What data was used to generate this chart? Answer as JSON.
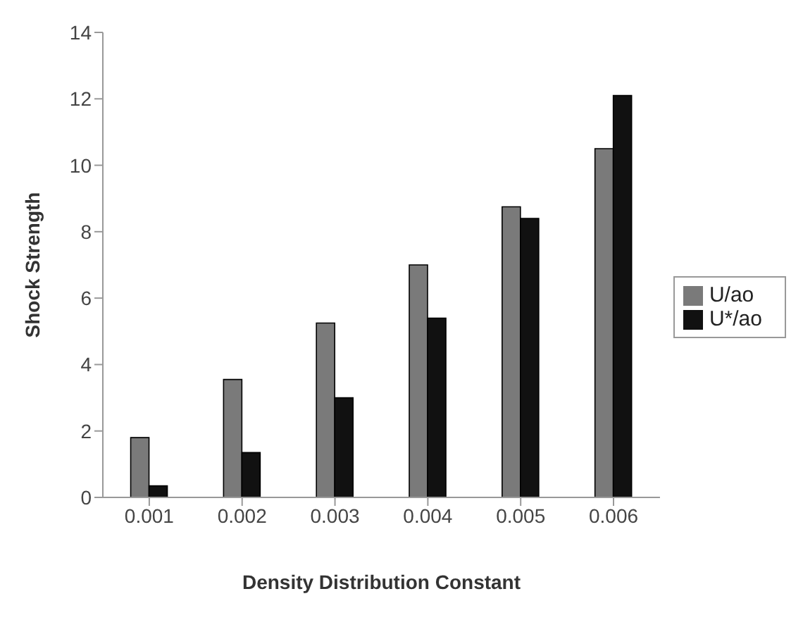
{
  "chart_data": {
    "type": "bar",
    "xlabel": "Density Distribution Constant",
    "ylabel": "Shock Strength",
    "categories": [
      "0.001",
      "0.002",
      "0.003",
      "0.004",
      "0.005",
      "0.006"
    ],
    "series": [
      {
        "name": "U/ao",
        "color": "#7a7a7a",
        "values": [
          1.8,
          3.55,
          5.25,
          7.0,
          8.75,
          10.5
        ]
      },
      {
        "name": "U*/ao",
        "color": "#111111",
        "values": [
          0.35,
          1.35,
          3.0,
          5.4,
          8.4,
          12.1
        ]
      }
    ],
    "ylim": [
      0,
      14
    ],
    "yticks": [
      0,
      2,
      4,
      6,
      8,
      10,
      12,
      14
    ],
    "grid": false,
    "legend": "right"
  }
}
